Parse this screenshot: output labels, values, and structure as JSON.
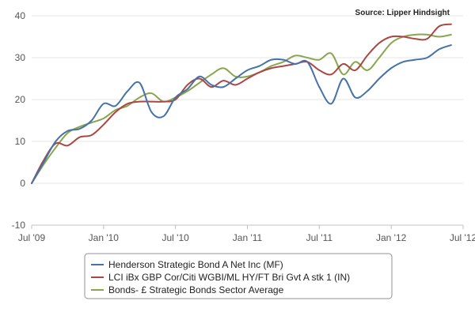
{
  "source_note": "Source: Lipper Hindsight",
  "chart_data": {
    "type": "line",
    "title": "",
    "xlabel": "",
    "ylabel": "",
    "ylim": [
      -10,
      40
    ],
    "yticks": [
      -10,
      0,
      10,
      20,
      30,
      40
    ],
    "xlim": [
      "2009-07",
      "2012-07"
    ],
    "xtick_labels": [
      "Jul '09",
      "Jan '10",
      "Jul '10",
      "Jan '11",
      "Jul '11",
      "Jan '12",
      "Jul '12"
    ],
    "grid": true,
    "legend_position": "bottom",
    "x": [
      "2009-07",
      "2009-08",
      "2009-09",
      "2009-10",
      "2009-11",
      "2009-12",
      "2010-01",
      "2010-02",
      "2010-03",
      "2010-04",
      "2010-05",
      "2010-06",
      "2010-07",
      "2010-08",
      "2010-09",
      "2010-10",
      "2010-11",
      "2010-12",
      "2011-01",
      "2011-02",
      "2011-03",
      "2011-04",
      "2011-05",
      "2011-06",
      "2011-07",
      "2011-08",
      "2011-09",
      "2011-10",
      "2011-11",
      "2011-12",
      "2012-01",
      "2012-02",
      "2012-03",
      "2012-04",
      "2012-05",
      "2012-06"
    ],
    "series": [
      {
        "name": "Henderson Strategic Bond A Net Inc (MF)",
        "color": "#4572A7",
        "values": [
          0,
          5,
          10,
          12.5,
          13,
          15,
          19,
          18.5,
          22,
          24,
          17,
          16,
          20.5,
          22.5,
          25.5,
          23.5,
          23,
          25,
          27,
          28,
          29.5,
          29.5,
          28.5,
          29,
          23,
          19,
          25,
          20.5,
          22,
          25,
          27.5,
          29,
          29.5,
          30,
          32,
          33
        ]
      },
      {
        "name": "LCI iBx GBP Cor/Citi WGBI/ML HY/FT Bri Gvt A stk 1 (IN)",
        "color": "#AA4643",
        "values": [
          0,
          5.5,
          9.5,
          9,
          11,
          11.5,
          14,
          17,
          19,
          19.5,
          19.5,
          19.5,
          20,
          23.5,
          25,
          23,
          24.5,
          23.5,
          25,
          26.5,
          27.5,
          28,
          28.5,
          29,
          27,
          26,
          28.5,
          27,
          30.5,
          33.5,
          35,
          35,
          34.5,
          34.5,
          37.5,
          38
        ]
      },
      {
        "name": "Bonds- £ Strategic Bonds Sector Average",
        "color": "#89A54E",
        "values": [
          0,
          4.5,
          8.5,
          12,
          13.5,
          14.5,
          15.5,
          17.5,
          18.5,
          20.5,
          21.5,
          19.5,
          20.5,
          22,
          24,
          26,
          27.5,
          25.5,
          25.5,
          26.5,
          28,
          29,
          30.5,
          30,
          29.5,
          31,
          26,
          29,
          27,
          30,
          33.5,
          35,
          35.5,
          35.5,
          35,
          35.5
        ]
      }
    ]
  }
}
